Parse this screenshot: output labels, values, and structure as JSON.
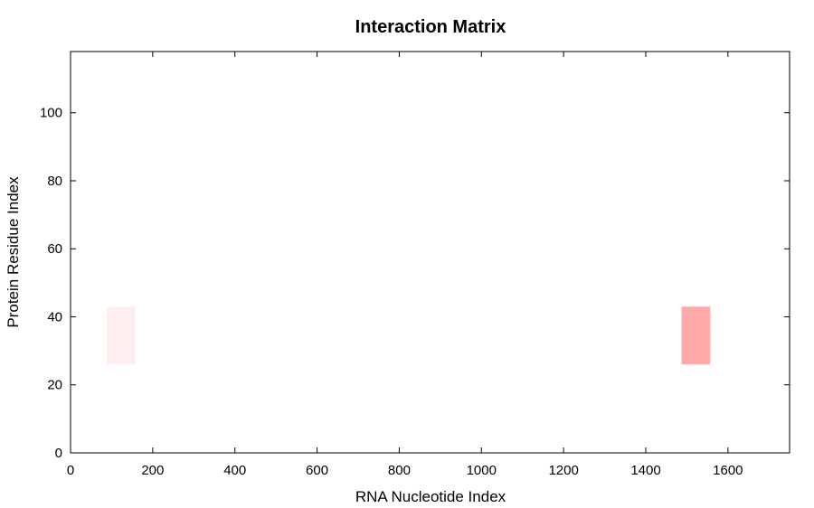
{
  "chart_data": {
    "type": "heatmap",
    "title": "Interaction Matrix",
    "xlabel": "RNA Nucleotide Index",
    "ylabel": "Protein Residue Index",
    "xlim": [
      0,
      1750
    ],
    "ylim": [
      0,
      118
    ],
    "xticks": [
      0,
      200,
      400,
      600,
      800,
      1000,
      1200,
      1400,
      1600
    ],
    "yticks": [
      0,
      20,
      40,
      60,
      80,
      100
    ],
    "grid": false,
    "cells": [
      {
        "x0": 88,
        "x1": 158,
        "y0": 26,
        "y1": 43,
        "color": "#ffeeee"
      },
      {
        "x0": 1487,
        "x1": 1557,
        "y0": 26,
        "y1": 43,
        "color": "#ffaaaa"
      }
    ]
  }
}
